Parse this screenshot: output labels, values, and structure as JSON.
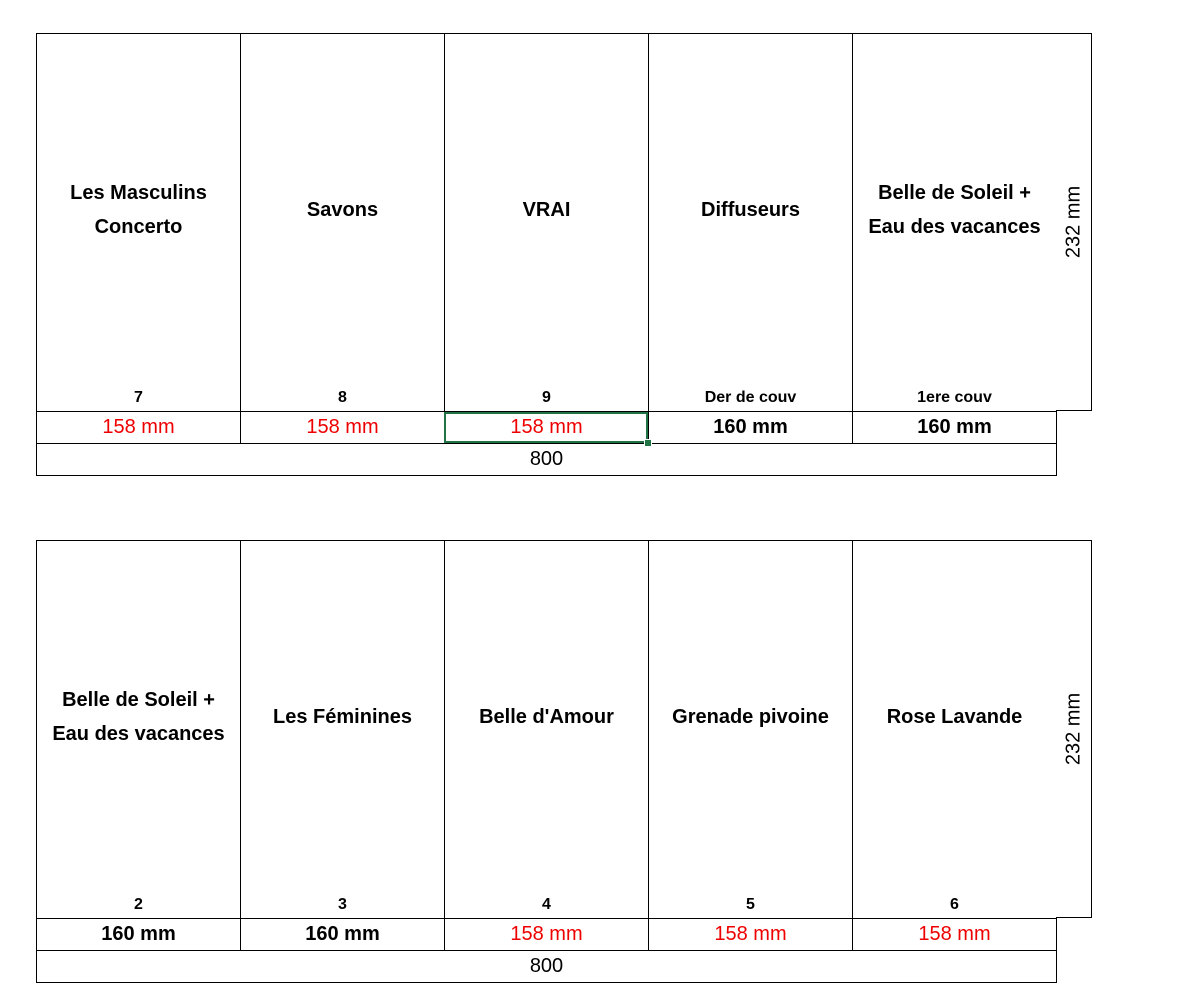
{
  "top": {
    "panels": [
      {
        "title": "Les Masculins\nConcerto",
        "number": "7"
      },
      {
        "title": "Savons",
        "number": "8"
      },
      {
        "title": "VRAI",
        "number": "9"
      },
      {
        "title": "Diffuseurs",
        "number": "Der de couv"
      },
      {
        "title": "Belle de Soleil +\nEau des vacances",
        "number": "1ere couv"
      }
    ],
    "height": "232 mm",
    "widths": [
      "158 mm",
      "158 mm",
      "158 mm",
      "160 mm",
      "160 mm"
    ],
    "total": "800"
  },
  "bottom": {
    "panels": [
      {
        "title": "Belle de Soleil +\nEau des vacances",
        "number": "2"
      },
      {
        "title": "Les Féminines",
        "number": "3"
      },
      {
        "title": "Belle d'Amour",
        "number": "4"
      },
      {
        "title": "Grenade pivoine",
        "number": "5"
      },
      {
        "title": "Rose Lavande",
        "number": "6"
      }
    ],
    "height": "232 mm",
    "widths": [
      "160 mm",
      "160 mm",
      "158 mm",
      "158 mm",
      "158 mm"
    ],
    "total": "800"
  },
  "colors": {
    "red_value": "#ee0000",
    "selection": "#217346"
  }
}
